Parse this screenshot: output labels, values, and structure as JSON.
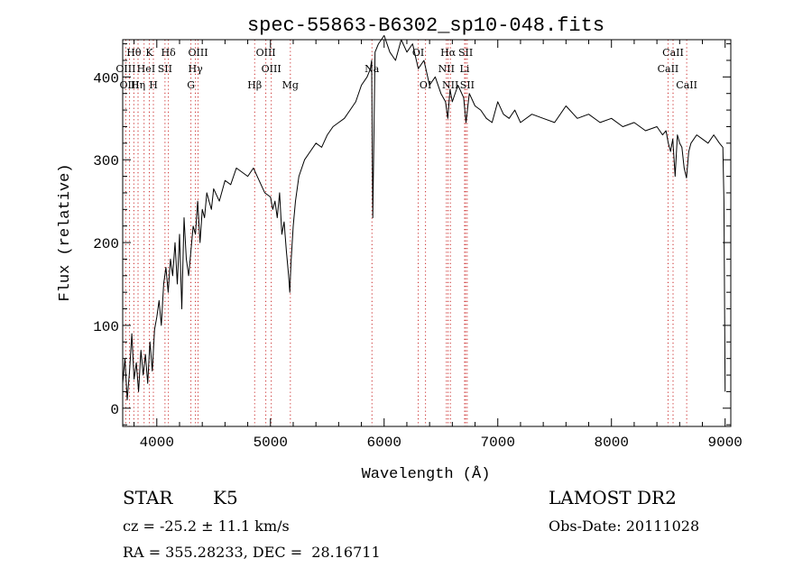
{
  "chart_data": {
    "type": "line",
    "title": "spec-55863-B6302_sp10-048.fits",
    "xlabel": "Wavelength (Å)",
    "ylabel": "Flux (relative)",
    "xlim": [
      3700,
      9050
    ],
    "ylim": [
      -22,
      445
    ],
    "xticks": [
      4000,
      5000,
      6000,
      7000,
      8000,
      9000
    ],
    "yticks": [
      0,
      100,
      200,
      300,
      400
    ],
    "grid": false,
    "series": [
      {
        "x": [
          3700,
          3720,
          3740,
          3760,
          3780,
          3800,
          3820,
          3840,
          3860,
          3880,
          3900,
          3920,
          3940,
          3960,
          3980,
          4000,
          4020,
          4040,
          4060,
          4080,
          4100,
          4120,
          4140,
          4160,
          4180,
          4200,
          4220,
          4240,
          4260,
          4280,
          4300,
          4320,
          4340,
          4360,
          4380,
          4400,
          4420,
          4440,
          4460,
          4480,
          4500,
          4550,
          4600,
          4650,
          4700,
          4750,
          4800,
          4850,
          4900,
          4950,
          5000,
          5020,
          5040,
          5060,
          5080,
          5100,
          5120,
          5140,
          5160,
          5170,
          5180,
          5200,
          5220,
          5250,
          5300,
          5350,
          5400,
          5450,
          5500,
          5550,
          5600,
          5650,
          5700,
          5750,
          5800,
          5850,
          5880,
          5890,
          5900,
          5920,
          5950,
          6000,
          6050,
          6100,
          6150,
          6200,
          6250,
          6300,
          6350,
          6400,
          6450,
          6500,
          6540,
          6560,
          6580,
          6600,
          6650,
          6700,
          6720,
          6750,
          6800,
          6850,
          6900,
          6950,
          7000,
          7050,
          7100,
          7150,
          7200,
          7300,
          7400,
          7500,
          7600,
          7700,
          7800,
          7900,
          8000,
          8100,
          8200,
          8300,
          8400,
          8450,
          8480,
          8500,
          8520,
          8540,
          8560,
          8580,
          8600,
          8620,
          8640,
          8660,
          8680,
          8700,
          8750,
          8800,
          8850,
          8900,
          8950,
          8980,
          8990,
          9000
        ],
        "values": [
          30,
          60,
          10,
          45,
          90,
          35,
          55,
          20,
          70,
          40,
          65,
          30,
          80,
          45,
          95,
          110,
          130,
          100,
          150,
          170,
          140,
          180,
          160,
          200,
          150,
          210,
          120,
          230,
          180,
          160,
          190,
          220,
          210,
          250,
          200,
          240,
          230,
          260,
          250,
          240,
          265,
          250,
          275,
          270,
          290,
          285,
          280,
          290,
          275,
          260,
          255,
          240,
          250,
          230,
          260,
          210,
          225,
          190,
          160,
          140,
          175,
          220,
          250,
          280,
          300,
          310,
          320,
          315,
          330,
          340,
          345,
          350,
          360,
          370,
          390,
          400,
          410,
          420,
          230,
          430,
          440,
          450,
          430,
          420,
          445,
          430,
          440,
          410,
          420,
          390,
          400,
          380,
          370,
          350,
          385,
          370,
          390,
          375,
          345,
          380,
          365,
          360,
          350,
          345,
          370,
          355,
          350,
          360,
          345,
          355,
          350,
          345,
          365,
          350,
          355,
          345,
          350,
          340,
          345,
          335,
          340,
          330,
          335,
          320,
          310,
          325,
          280,
          330,
          320,
          315,
          290,
          278,
          310,
          320,
          330,
          325,
          320,
          330,
          320,
          315,
          250,
          20
        ]
      }
    ],
    "line_labels": [
      {
        "text": "Hθ",
        "w": 3798,
        "row": 0
      },
      {
        "text": "K",
        "w": 3934,
        "row": 0
      },
      {
        "text": "Hδ",
        "w": 4102,
        "row": 0
      },
      {
        "text": "OIII",
        "w": 4363,
        "row": 0
      },
      {
        "text": "OIII",
        "w": 4959,
        "row": 0
      },
      {
        "text": "OI",
        "w": 6300,
        "row": 0
      },
      {
        "text": "Hα",
        "w": 6563,
        "row": 0
      },
      {
        "text": "SII",
        "w": 6717,
        "row": 0
      },
      {
        "text": "CaII",
        "w": 8542,
        "row": 0
      },
      {
        "text": "OIII",
        "w": 3727,
        "row": 1
      },
      {
        "text": "He",
        "w": 3888,
        "row": 1
      },
      {
        "text": "I",
        "w": 3970,
        "row": 1
      },
      {
        "text": "SII",
        "w": 4072,
        "row": 1
      },
      {
        "text": "Hγ",
        "w": 4340,
        "row": 1
      },
      {
        "text": "OIII",
        "w": 5007,
        "row": 1
      },
      {
        "text": "Na",
        "w": 5893,
        "row": 1
      },
      {
        "text": "NII",
        "w": 6548,
        "row": 1
      },
      {
        "text": "Li",
        "w": 6708,
        "row": 1
      },
      {
        "text": "CaII",
        "w": 8498,
        "row": 1
      },
      {
        "text": "OIII",
        "w": 3760,
        "row": 2
      },
      {
        "text": "Hη",
        "w": 3835,
        "row": 2
      },
      {
        "text": "H",
        "w": 3970,
        "row": 2
      },
      {
        "text": "G",
        "w": 4300,
        "row": 2
      },
      {
        "text": "Hβ",
        "w": 4861,
        "row": 2
      },
      {
        "text": "Mg",
        "w": 5175,
        "row": 2
      },
      {
        "text": "OI",
        "w": 6364,
        "row": 2
      },
      {
        "text": "NII",
        "w": 6583,
        "row": 2
      },
      {
        "text": "SII",
        "w": 6731,
        "row": 2
      },
      {
        "text": "CaII",
        "w": 8662,
        "row": 2
      }
    ],
    "line_marks": [
      3727,
      3760,
      3798,
      3835,
      3888,
      3934,
      3970,
      4072,
      4102,
      4300,
      4340,
      4363,
      4861,
      4959,
      5007,
      5175,
      5893,
      6300,
      6364,
      6548,
      6563,
      6583,
      6708,
      6717,
      6731,
      8498,
      8542,
      8662
    ]
  },
  "info": {
    "object_class": "STAR",
    "subclass": "K5",
    "survey": "LAMOST DR2",
    "cz": "cz = -25.2 ± 11.1 km/s",
    "obs_date": "Obs-Date: 20111028",
    "coords": "RA = 355.28233, DEC =  28.16711"
  }
}
